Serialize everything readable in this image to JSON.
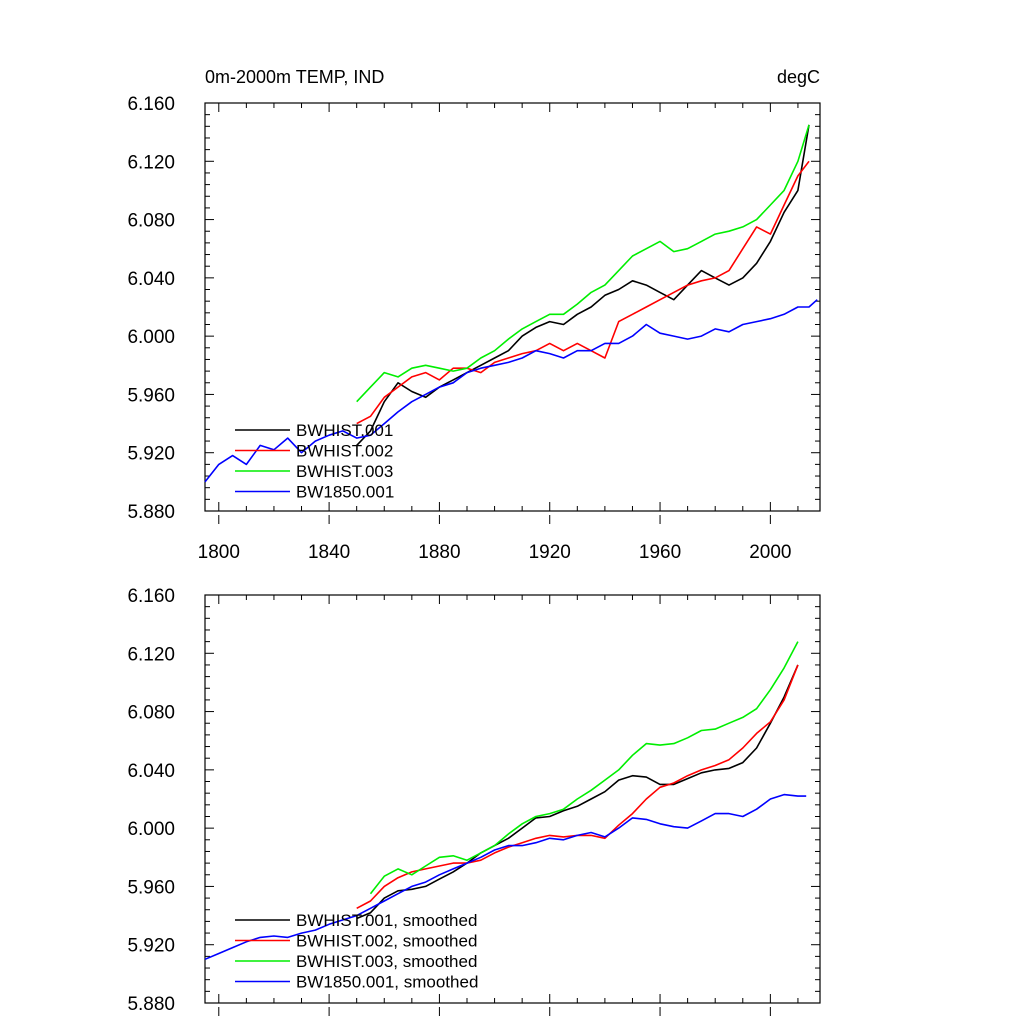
{
  "chart_data": [
    {
      "type": "line",
      "title_left": "0m-2000m TEMP, IND",
      "title_right": "degC",
      "xlim": [
        1795,
        2018
      ],
      "ylim": [
        5.88,
        6.16
      ],
      "xticks": [
        1800,
        1840,
        1880,
        1920,
        1960,
        2000
      ],
      "xtick_labels": [
        "1800",
        "1840",
        "1880",
        "1920",
        "1960",
        "2000"
      ],
      "yticks": [
        5.88,
        5.92,
        5.96,
        6.0,
        6.04,
        6.08,
        6.12,
        6.16
      ],
      "ytick_labels": [
        "5.880",
        "5.920",
        "5.960",
        "6.000",
        "6.040",
        "6.080",
        "6.120",
        "6.160"
      ],
      "grid": false,
      "legend_position": "bottom-left",
      "series": [
        {
          "name": "BWHIST.001",
          "color": "#000000",
          "x": [
            1850,
            1855,
            1860,
            1865,
            1870,
            1875,
            1880,
            1885,
            1890,
            1895,
            1900,
            1905,
            1910,
            1915,
            1920,
            1925,
            1930,
            1935,
            1940,
            1945,
            1950,
            1955,
            1960,
            1965,
            1970,
            1975,
            1980,
            1985,
            1990,
            1995,
            2000,
            2005,
            2010,
            2014
          ],
          "y": [
            5.925,
            5.935,
            5.955,
            5.968,
            5.962,
            5.958,
            5.965,
            5.97,
            5.975,
            5.98,
            5.985,
            5.99,
            6.0,
            6.006,
            6.01,
            6.008,
            6.015,
            6.02,
            6.028,
            6.032,
            6.038,
            6.035,
            6.03,
            6.025,
            6.035,
            6.045,
            6.04,
            6.035,
            6.04,
            6.05,
            6.065,
            6.085,
            6.1,
            6.145
          ]
        },
        {
          "name": "BWHIST.002",
          "color": "#ff0000",
          "x": [
            1850,
            1855,
            1860,
            1865,
            1870,
            1875,
            1880,
            1885,
            1890,
            1895,
            1900,
            1905,
            1910,
            1915,
            1920,
            1925,
            1930,
            1935,
            1940,
            1945,
            1950,
            1955,
            1960,
            1965,
            1970,
            1975,
            1980,
            1985,
            1990,
            1995,
            2000,
            2005,
            2010,
            2014
          ],
          "y": [
            5.94,
            5.945,
            5.958,
            5.965,
            5.972,
            5.975,
            5.97,
            5.978,
            5.978,
            5.975,
            5.982,
            5.985,
            5.988,
            5.99,
            5.995,
            5.99,
            5.995,
            5.99,
            5.985,
            6.01,
            6.015,
            6.02,
            6.025,
            6.03,
            6.035,
            6.038,
            6.04,
            6.045,
            6.06,
            6.075,
            6.07,
            6.09,
            6.11,
            6.12
          ]
        },
        {
          "name": "BWHIST.003",
          "color": "#00ee00",
          "x": [
            1850,
            1855,
            1860,
            1865,
            1870,
            1875,
            1880,
            1885,
            1890,
            1895,
            1900,
            1905,
            1910,
            1915,
            1920,
            1925,
            1930,
            1935,
            1940,
            1945,
            1950,
            1955,
            1960,
            1965,
            1970,
            1975,
            1980,
            1985,
            1990,
            1995,
            2000,
            2005,
            2010,
            2014
          ],
          "y": [
            5.955,
            5.965,
            5.975,
            5.972,
            5.978,
            5.98,
            5.978,
            5.976,
            5.978,
            5.985,
            5.99,
            5.998,
            6.005,
            6.01,
            6.015,
            6.015,
            6.022,
            6.03,
            6.035,
            6.045,
            6.055,
            6.06,
            6.065,
            6.058,
            6.06,
            6.065,
            6.07,
            6.072,
            6.075,
            6.08,
            6.09,
            6.1,
            6.12,
            6.145
          ]
        },
        {
          "name": "BW1850.001",
          "color": "#0000ff",
          "x": [
            1795,
            1800,
            1805,
            1810,
            1815,
            1820,
            1825,
            1830,
            1835,
            1840,
            1845,
            1850,
            1855,
            1860,
            1865,
            1870,
            1875,
            1880,
            1885,
            1890,
            1895,
            1900,
            1905,
            1910,
            1915,
            1920,
            1925,
            1930,
            1935,
            1940,
            1945,
            1950,
            1955,
            1960,
            1965,
            1970,
            1975,
            1980,
            1985,
            1990,
            1995,
            2000,
            2005,
            2010,
            2014,
            2017
          ],
          "y": [
            5.9,
            5.912,
            5.918,
            5.912,
            5.925,
            5.922,
            5.93,
            5.92,
            5.928,
            5.932,
            5.935,
            5.93,
            5.932,
            5.94,
            5.948,
            5.955,
            5.96,
            5.965,
            5.968,
            5.975,
            5.978,
            5.98,
            5.982,
            5.985,
            5.99,
            5.988,
            5.985,
            5.99,
            5.99,
            5.995,
            5.995,
            6.0,
            6.008,
            6.002,
            6.0,
            5.998,
            6.0,
            6.005,
            6.003,
            6.008,
            6.01,
            6.012,
            6.015,
            6.02,
            6.02,
            6.025
          ]
        }
      ]
    },
    {
      "type": "line",
      "xlim": [
        1795,
        2018
      ],
      "ylim": [
        5.88,
        6.16
      ],
      "yticks": [
        5.88,
        5.92,
        5.96,
        6.0,
        6.04,
        6.08,
        6.12,
        6.16
      ],
      "ytick_labels": [
        "5.880",
        "5.920",
        "5.960",
        "6.000",
        "6.040",
        "6.080",
        "6.120",
        "6.160"
      ],
      "xticks": [
        1800,
        1840,
        1880,
        1920,
        1960,
        2000
      ],
      "grid": false,
      "legend_position": "bottom-left",
      "series": [
        {
          "name": "BWHIST.001, smoothed",
          "color": "#000000",
          "x": [
            1850,
            1855,
            1860,
            1865,
            1870,
            1875,
            1880,
            1885,
            1890,
            1895,
            1900,
            1905,
            1910,
            1915,
            1920,
            1925,
            1930,
            1935,
            1940,
            1945,
            1950,
            1955,
            1960,
            1965,
            1970,
            1975,
            1980,
            1985,
            1990,
            1995,
            2000,
            2005,
            2010
          ],
          "y": [
            5.938,
            5.942,
            5.952,
            5.957,
            5.958,
            5.96,
            5.965,
            5.97,
            5.976,
            5.983,
            5.988,
            5.993,
            6.0,
            6.007,
            6.008,
            6.012,
            6.015,
            6.02,
            6.025,
            6.033,
            6.036,
            6.035,
            6.03,
            6.03,
            6.034,
            6.038,
            6.04,
            6.041,
            6.045,
            6.055,
            6.072,
            6.09,
            6.112
          ]
        },
        {
          "name": "BWHIST.002, smoothed",
          "color": "#ff0000",
          "x": [
            1850,
            1855,
            1860,
            1865,
            1870,
            1875,
            1880,
            1885,
            1890,
            1895,
            1900,
            1905,
            1910,
            1915,
            1920,
            1925,
            1930,
            1935,
            1940,
            1945,
            1950,
            1955,
            1960,
            1965,
            1970,
            1975,
            1980,
            1985,
            1990,
            1995,
            2000,
            2005,
            2010
          ],
          "y": [
            5.945,
            5.95,
            5.96,
            5.966,
            5.97,
            5.972,
            5.974,
            5.976,
            5.976,
            5.978,
            5.983,
            5.987,
            5.99,
            5.993,
            5.995,
            5.994,
            5.995,
            5.995,
            5.993,
            6.002,
            6.01,
            6.02,
            6.028,
            6.031,
            6.036,
            6.04,
            6.043,
            6.047,
            6.055,
            6.065,
            6.073,
            6.088,
            6.112
          ]
        },
        {
          "name": "BWHIST.003, smoothed",
          "color": "#00ee00",
          "x": [
            1855,
            1860,
            1865,
            1870,
            1875,
            1880,
            1885,
            1890,
            1895,
            1900,
            1905,
            1910,
            1915,
            1920,
            1925,
            1930,
            1935,
            1940,
            1945,
            1950,
            1955,
            1960,
            1965,
            1970,
            1975,
            1980,
            1985,
            1990,
            1995,
            2000,
            2005,
            2010
          ],
          "y": [
            5.955,
            5.967,
            5.972,
            5.968,
            5.974,
            5.98,
            5.981,
            5.978,
            5.983,
            5.988,
            5.996,
            6.003,
            6.008,
            6.01,
            6.013,
            6.02,
            6.026,
            6.033,
            6.04,
            6.05,
            6.058,
            6.057,
            6.058,
            6.062,
            6.067,
            6.068,
            6.072,
            6.076,
            6.082,
            6.095,
            6.11,
            6.128
          ]
        },
        {
          "name": "BW1850.001, smoothed",
          "color": "#0000ff",
          "x": [
            1795,
            1800,
            1805,
            1810,
            1815,
            1820,
            1825,
            1830,
            1835,
            1840,
            1845,
            1850,
            1855,
            1860,
            1865,
            1870,
            1875,
            1880,
            1885,
            1890,
            1895,
            1900,
            1905,
            1910,
            1915,
            1920,
            1925,
            1930,
            1935,
            1940,
            1945,
            1950,
            1955,
            1960,
            1965,
            1970,
            1975,
            1980,
            1985,
            1990,
            1995,
            2000,
            2005,
            2010,
            2013
          ],
          "y": [
            5.91,
            5.914,
            5.918,
            5.922,
            5.925,
            5.926,
            5.925,
            5.928,
            5.93,
            5.934,
            5.937,
            5.94,
            5.945,
            5.95,
            5.955,
            5.96,
            5.963,
            5.968,
            5.972,
            5.976,
            5.98,
            5.985,
            5.988,
            5.988,
            5.99,
            5.993,
            5.992,
            5.995,
            5.997,
            5.994,
            6.0,
            6.007,
            6.006,
            6.003,
            6.001,
            6.0,
            6.005,
            6.01,
            6.01,
            6.008,
            6.013,
            6.02,
            6.023,
            6.022,
            6.022
          ]
        }
      ]
    }
  ]
}
